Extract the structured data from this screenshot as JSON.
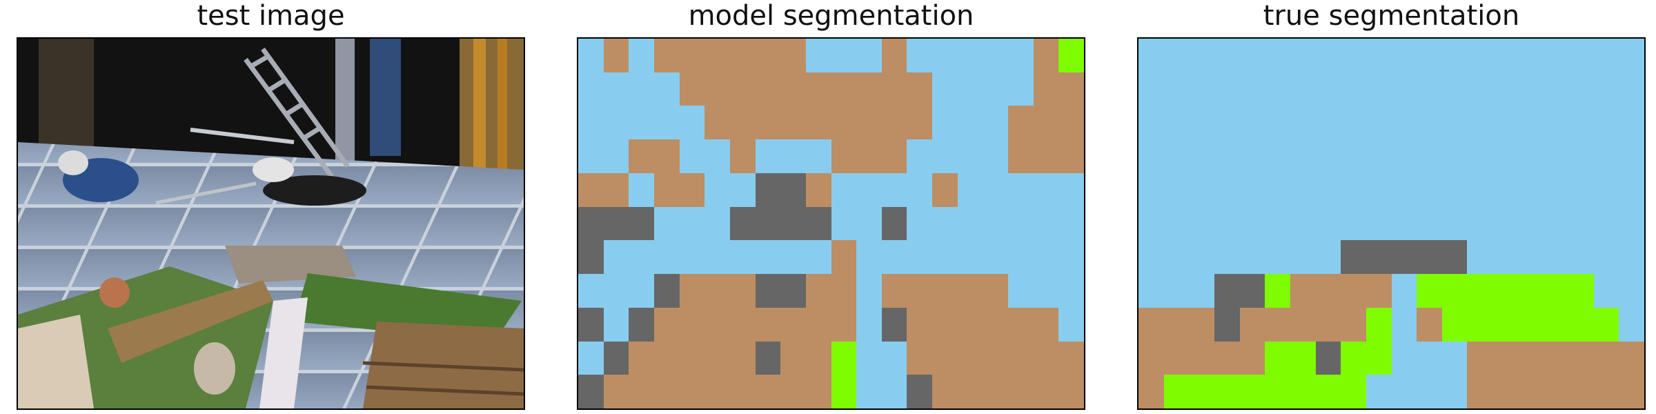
{
  "titles": {
    "test_image": "test image",
    "model_segmentation": "model segmentation",
    "true_segmentation": "true segmentation"
  },
  "palette": {
    "sky": "#88cdef",
    "ground": "#bd8e63",
    "rock": "#666666",
    "grass": "#7ffc00"
  },
  "model_grid": [
    [
      "sky",
      "ground",
      "sky",
      "ground",
      "ground",
      "ground",
      "ground",
      "ground",
      "ground",
      "sky",
      "sky",
      "sky",
      "ground",
      "sky",
      "sky",
      "sky",
      "sky",
      "sky",
      "ground",
      "grass"
    ],
    [
      "sky",
      "sky",
      "sky",
      "sky",
      "ground",
      "ground",
      "ground",
      "ground",
      "ground",
      "ground",
      "ground",
      "ground",
      "ground",
      "ground",
      "sky",
      "sky",
      "sky",
      "sky",
      "ground",
      "ground"
    ],
    [
      "sky",
      "sky",
      "sky",
      "sky",
      "sky",
      "ground",
      "ground",
      "ground",
      "ground",
      "ground",
      "ground",
      "ground",
      "ground",
      "ground",
      "sky",
      "sky",
      "sky",
      "ground",
      "ground",
      "ground"
    ],
    [
      "sky",
      "sky",
      "ground",
      "ground",
      "sky",
      "sky",
      "ground",
      "sky",
      "sky",
      "sky",
      "ground",
      "ground",
      "ground",
      "sky",
      "sky",
      "sky",
      "sky",
      "ground",
      "ground",
      "ground"
    ],
    [
      "ground",
      "ground",
      "sky",
      "ground",
      "ground",
      "sky",
      "sky",
      "rock",
      "rock",
      "ground",
      "sky",
      "sky",
      "sky",
      "sky",
      "ground",
      "sky",
      "sky",
      "sky",
      "sky",
      "sky"
    ],
    [
      "rock",
      "rock",
      "rock",
      "sky",
      "sky",
      "sky",
      "rock",
      "rock",
      "rock",
      "rock",
      "sky",
      "sky",
      "rock",
      "sky",
      "sky",
      "sky",
      "sky",
      "sky",
      "sky",
      "sky"
    ],
    [
      "rock",
      "sky",
      "sky",
      "sky",
      "sky",
      "sky",
      "sky",
      "sky",
      "sky",
      "sky",
      "ground",
      "sky",
      "sky",
      "sky",
      "sky",
      "sky",
      "sky",
      "sky",
      "sky",
      "sky"
    ],
    [
      "sky",
      "sky",
      "sky",
      "rock",
      "ground",
      "ground",
      "ground",
      "rock",
      "rock",
      "ground",
      "ground",
      "sky",
      "ground",
      "ground",
      "ground",
      "ground",
      "ground",
      "sky",
      "sky",
      "sky"
    ],
    [
      "rock",
      "sky",
      "rock",
      "ground",
      "ground",
      "ground",
      "ground",
      "ground",
      "ground",
      "ground",
      "ground",
      "sky",
      "rock",
      "ground",
      "ground",
      "ground",
      "ground",
      "ground",
      "ground",
      "sky"
    ],
    [
      "sky",
      "rock",
      "ground",
      "ground",
      "ground",
      "ground",
      "ground",
      "rock",
      "ground",
      "ground",
      "grass",
      "sky",
      "sky",
      "ground",
      "ground",
      "ground",
      "ground",
      "ground",
      "ground",
      "ground"
    ],
    [
      "rock",
      "ground",
      "ground",
      "ground",
      "ground",
      "ground",
      "ground",
      "ground",
      "ground",
      "ground",
      "grass",
      "sky",
      "sky",
      "rock",
      "ground",
      "ground",
      "ground",
      "ground",
      "ground",
      "ground"
    ]
  ],
  "true_grid": [
    [
      "sky",
      "sky",
      "sky",
      "sky",
      "sky",
      "sky",
      "sky",
      "sky",
      "sky",
      "sky",
      "sky",
      "sky",
      "sky",
      "sky",
      "sky",
      "sky",
      "sky",
      "sky",
      "sky",
      "sky"
    ],
    [
      "sky",
      "sky",
      "sky",
      "sky",
      "sky",
      "sky",
      "sky",
      "sky",
      "sky",
      "sky",
      "sky",
      "sky",
      "sky",
      "sky",
      "sky",
      "sky",
      "sky",
      "sky",
      "sky",
      "sky"
    ],
    [
      "sky",
      "sky",
      "sky",
      "sky",
      "sky",
      "sky",
      "sky",
      "sky",
      "sky",
      "sky",
      "sky",
      "sky",
      "sky",
      "sky",
      "sky",
      "sky",
      "sky",
      "sky",
      "sky",
      "sky"
    ],
    [
      "sky",
      "sky",
      "sky",
      "sky",
      "sky",
      "sky",
      "sky",
      "sky",
      "sky",
      "sky",
      "sky",
      "sky",
      "sky",
      "sky",
      "sky",
      "sky",
      "sky",
      "sky",
      "sky",
      "sky"
    ],
    [
      "sky",
      "sky",
      "sky",
      "sky",
      "sky",
      "sky",
      "sky",
      "sky",
      "sky",
      "sky",
      "sky",
      "sky",
      "sky",
      "sky",
      "sky",
      "sky",
      "sky",
      "sky",
      "sky",
      "sky"
    ],
    [
      "sky",
      "sky",
      "sky",
      "sky",
      "sky",
      "sky",
      "sky",
      "sky",
      "sky",
      "sky",
      "sky",
      "sky",
      "sky",
      "sky",
      "sky",
      "sky",
      "sky",
      "sky",
      "sky",
      "sky"
    ],
    [
      "sky",
      "sky",
      "sky",
      "sky",
      "sky",
      "sky",
      "sky",
      "sky",
      "rock",
      "rock",
      "rock",
      "rock",
      "rock",
      "sky",
      "sky",
      "sky",
      "sky",
      "sky",
      "sky",
      "sky"
    ],
    [
      "sky",
      "sky",
      "sky",
      "rock",
      "rock",
      "grass",
      "ground",
      "ground",
      "ground",
      "ground",
      "sky",
      "grass",
      "grass",
      "grass",
      "grass",
      "grass",
      "grass",
      "grass",
      "sky",
      "sky"
    ],
    [
      "ground",
      "ground",
      "ground",
      "rock",
      "ground",
      "ground",
      "ground",
      "ground",
      "ground",
      "grass",
      "sky",
      "ground",
      "grass",
      "grass",
      "grass",
      "grass",
      "grass",
      "grass",
      "grass",
      "sky"
    ],
    [
      "ground",
      "ground",
      "ground",
      "ground",
      "ground",
      "grass",
      "grass",
      "rock",
      "grass",
      "grass",
      "sky",
      "sky",
      "sky",
      "ground",
      "ground",
      "ground",
      "ground",
      "ground",
      "ground",
      "ground"
    ],
    [
      "ground",
      "grass",
      "grass",
      "grass",
      "grass",
      "grass",
      "grass",
      "grass",
      "grass",
      "sky",
      "sky",
      "sky",
      "sky",
      "ground",
      "ground",
      "ground",
      "ground",
      "ground",
      "ground",
      "ground"
    ]
  ]
}
